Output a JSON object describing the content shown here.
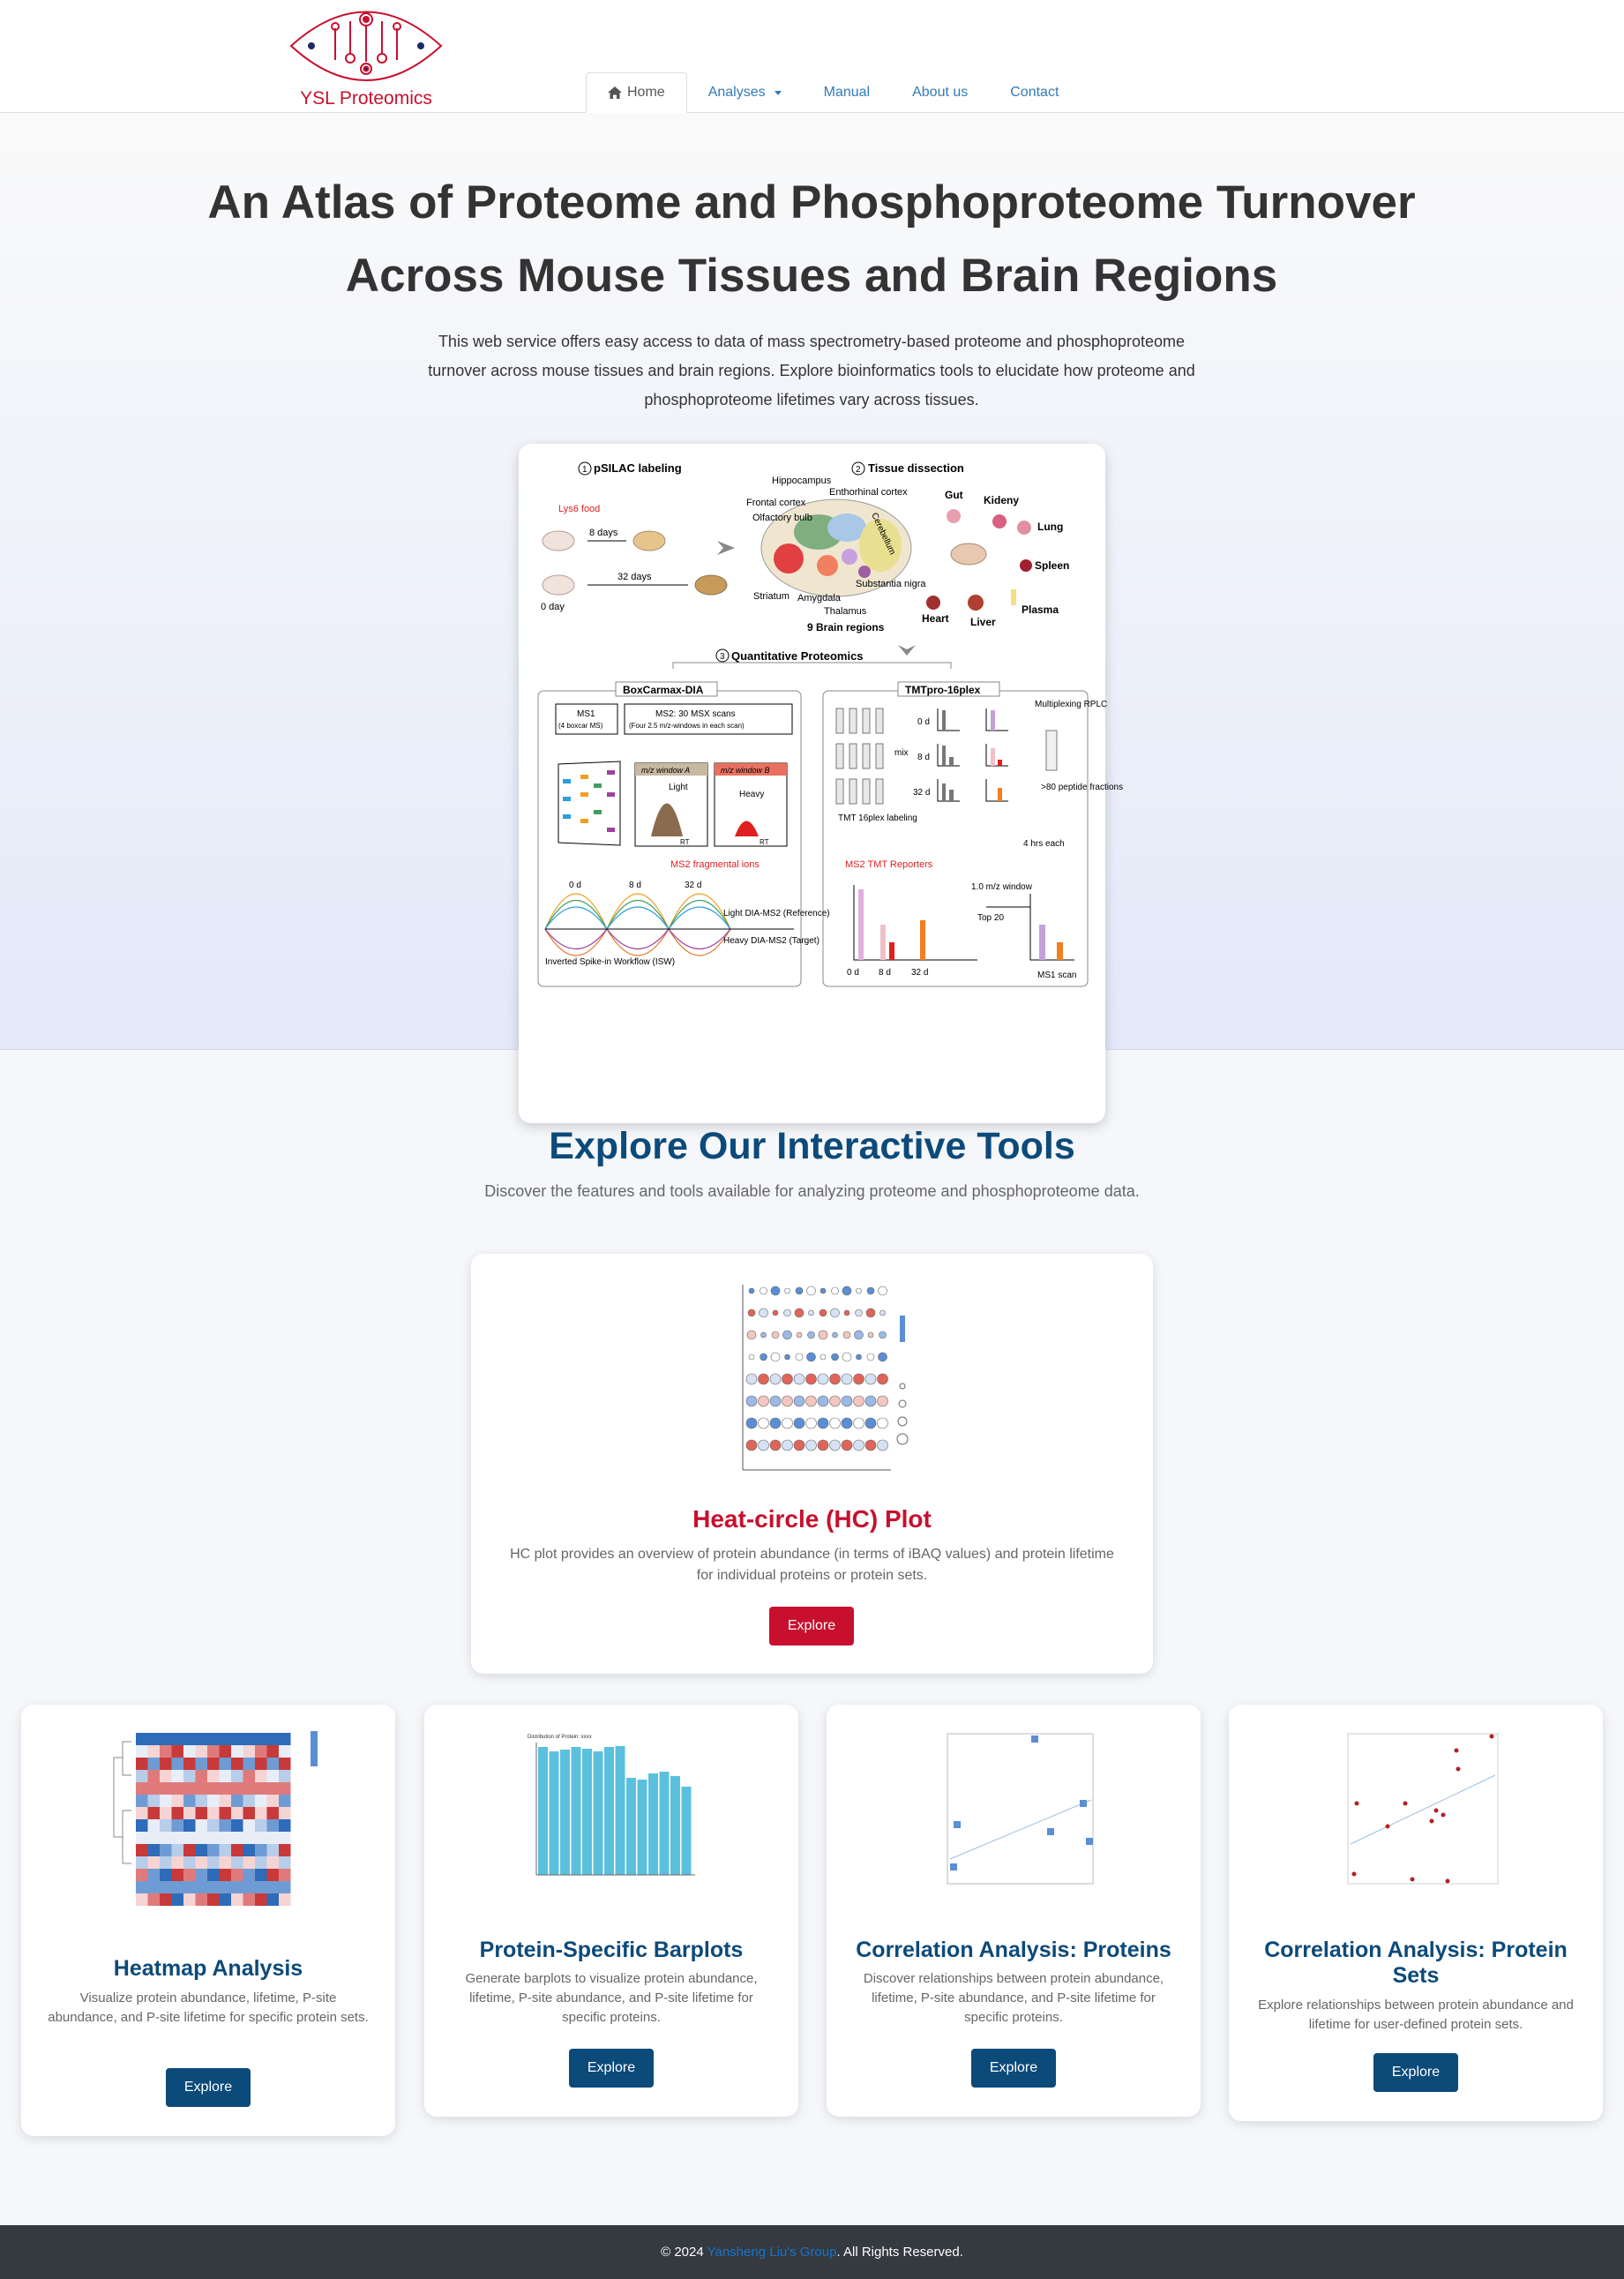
{
  "brand": {
    "name": "YSL Proteomics"
  },
  "nav": {
    "items": [
      {
        "label": "Home",
        "icon": "home-icon"
      },
      {
        "label": "Analyses"
      },
      {
        "label": "Manual"
      },
      {
        "label": "About us"
      },
      {
        "label": "Contact"
      }
    ]
  },
  "hero": {
    "title_line1": "An Atlas of Proteome and Phosphoproteome Turnover",
    "title_line2": "Across Mouse Tissues and Brain Regions",
    "description": "This web service offers easy access to data of mass spectrometry-based proteome and phosphoproteome turnover across mouse tissues and brain regions. Explore bioinformatics tools to elucidate how proteome and phosphoproteome lifetimes vary across tissues."
  },
  "figure": {
    "step1": "pSILAC labeling",
    "step2": "Tissue dissection",
    "step3": "Quantitative Proteomics",
    "lys6_food": "Lys6 food",
    "day0": "0 day",
    "days8": "8 days",
    "days32": "32 days",
    "brain_regions": [
      "Hippocampus",
      "Enthorhinal cortex",
      "Frontal cortex",
      "Olfactory bulb",
      "Cerebellum",
      "Striatum",
      "Amygdala",
      "Thalamus",
      "Substantia nigra"
    ],
    "brain_label": "9 Brain regions",
    "tissues": [
      "Gut",
      "Kideny",
      "Lung",
      "Spleen",
      "Plasma",
      "Heart",
      "Liver"
    ],
    "boxcar": "BoxCarmax-DIA",
    "tmt": "TMTpro-16plex",
    "ms1": "MS1",
    "ms1_sub": "(4 boxcar MS)",
    "ms2": "MS2: 30 MSX scans",
    "ms2_sub": "(Four 2.5 m/z-windows in each scan)",
    "window_a": "m/z window A",
    "window_b": "m/z window B",
    "light": "Light",
    "heavy": "Heavy",
    "rt": "RT",
    "ms2_frag": "MS2 fragmental ions",
    "t0": "0 d",
    "t8": "8 d",
    "t32": "32 d",
    "light_ref": "Light DIA-MS2 (Reference)",
    "heavy_target": "Heavy DIA-MS2 (Target)",
    "isw": "Inverted Spike-in Workflow (ISW)",
    "tmt_label": "TMT 16plex labeling",
    "mix": "mix",
    "multiplexing": "Multiplexing RPLC",
    "peptide": ">80 peptide fractions",
    "each": "4 hrs each",
    "reporters": "MS2 TMT Reporters",
    "window": "1.0 m/z window",
    "top20": "Top 20",
    "ms1scan": "MS1 scan"
  },
  "tools": {
    "title": "Explore Our Interactive Tools",
    "subtitle": "Discover the features and tools available for analyzing proteome and phosphoproteome data.",
    "explore_label": "Explore",
    "cards": [
      {
        "title": "Heat-circle (HC) Plot",
        "desc": "HC plot provides an overview of protein abundance (in terms of iBAQ values) and protein lifetime for individual proteins or protein sets.",
        "accent": "#c8102e"
      },
      {
        "title": "Heatmap Analysis",
        "desc": "Visualize protein abundance, lifetime, P-site abundance, and P-site lifetime for specific protein sets."
      },
      {
        "title": "Protein-Specific Barplots",
        "desc": "Generate barplots to visualize protein abundance, lifetime, P-site abundance, and P-site lifetime for specific proteins.",
        "chart_title": "Distribution of Protein: xxxx"
      },
      {
        "title": "Correlation Analysis: Proteins",
        "desc": "Discover relationships between protein abundance, lifetime, P-site abundance, and P-site lifetime for specific proteins."
      },
      {
        "title": "Correlation Analysis: Protein Sets",
        "desc": "Explore relationships between protein abundance and lifetime for user-defined protein sets."
      }
    ]
  },
  "footer": {
    "copyright": "© 2024",
    "group": "Yansheng Liu's Group",
    "rights": ". All Rights Reserved."
  },
  "colors": {
    "brand_red": "#c8102e",
    "primary_blue": "#0c4a7a",
    "link": "#337ab7",
    "footer_bg": "#343a40"
  }
}
